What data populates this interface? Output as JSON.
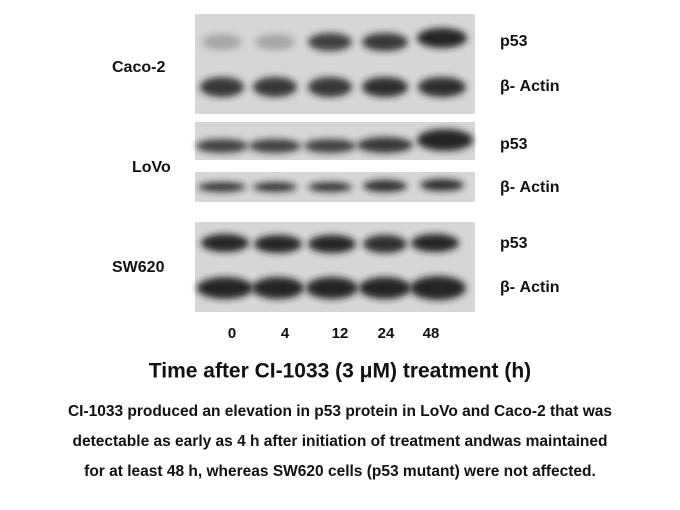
{
  "panels": [
    {
      "cell_line": "Caco-2",
      "bands": [
        "p53",
        "β- Actin"
      ]
    },
    {
      "cell_line": "LoVo",
      "bands": [
        "p53",
        "β- Actin"
      ]
    },
    {
      "cell_line": "SW620",
      "bands": [
        "p53",
        "β- Actin"
      ]
    }
  ],
  "time_points": [
    "0",
    "4",
    "12",
    "24",
    "48"
  ],
  "axis_title": "Time after CI-1033 (3 μM) treatment (h)",
  "caption": [
    "CI-1033 produced an elevation in p53 protein in LoVo and Caco-2 that was",
    "detectable as early as 4 h after initiation of treatment andwas maintained",
    "for at least 48 h, whereas SW620 cells (p53 mutant) were not affected."
  ]
}
